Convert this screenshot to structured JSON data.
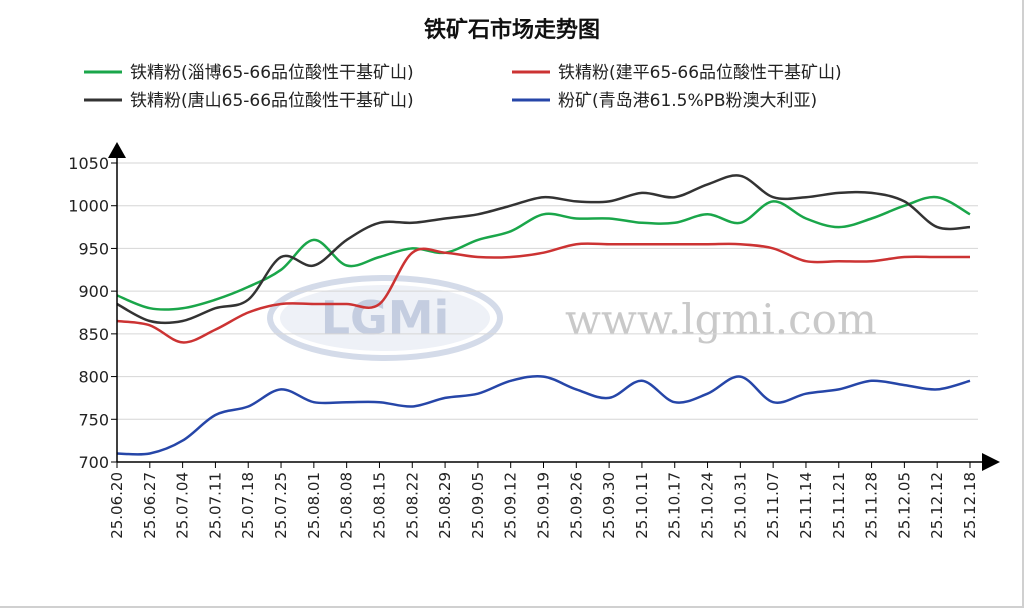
{
  "watermark": {
    "logo": "LGMi",
    "site": "www.lgmi.com"
  },
  "chart_data": {
    "type": "line",
    "title": "铁矿石市场走势图",
    "xlabel": "",
    "ylabel": "",
    "ylim": [
      700,
      1050
    ],
    "yticks": [
      700,
      750,
      800,
      850,
      900,
      950,
      1000,
      1050
    ],
    "grid": true,
    "legend_position": "top",
    "x": [
      "25.06.20",
      "25.06.27",
      "25.07.04",
      "25.07.11",
      "25.07.18",
      "25.07.25",
      "25.08.01",
      "25.08.08",
      "25.08.15",
      "25.08.22",
      "25.08.29",
      "25.09.05",
      "25.09.12",
      "25.09.19",
      "25.09.26",
      "25.09.30",
      "25.10.11",
      "25.10.17",
      "25.10.24",
      "25.10.31",
      "25.11.07",
      "25.11.14",
      "25.11.21",
      "25.11.28",
      "25.12.05",
      "25.12.12",
      "25.12.18"
    ],
    "series": [
      {
        "name": "铁精粉(淄博65-66品位酸性干基矿山)",
        "color": "#1aa64a",
        "values": [
          895,
          880,
          880,
          890,
          905,
          925,
          960,
          930,
          940,
          950,
          945,
          960,
          970,
          990,
          985,
          985,
          980,
          980,
          990,
          980,
          1005,
          985,
          975,
          985,
          1000,
          1010,
          990
        ]
      },
      {
        "name": "铁精粉(建平65-66品位酸性干基矿山)",
        "color": "#cc3333",
        "values": [
          865,
          860,
          840,
          855,
          875,
          885,
          885,
          885,
          885,
          945,
          945,
          940,
          940,
          945,
          955,
          955,
          955,
          955,
          955,
          955,
          950,
          935,
          935,
          935,
          940,
          940,
          940
        ]
      },
      {
        "name": "铁精粉(唐山65-66品位酸性干基矿山)",
        "color": "#333333",
        "values": [
          885,
          865,
          865,
          880,
          890,
          940,
          930,
          960,
          980,
          980,
          985,
          990,
          1000,
          1010,
          1005,
          1005,
          1015,
          1010,
          1025,
          1035,
          1010,
          1010,
          1015,
          1015,
          1005,
          975,
          975
        ]
      },
      {
        "name": "粉矿(青岛港61.5%PB粉澳大利亚)",
        "color": "#2646a8",
        "values": [
          710,
          710,
          725,
          755,
          765,
          785,
          770,
          770,
          770,
          765,
          775,
          780,
          795,
          800,
          785,
          775,
          795,
          770,
          780,
          800,
          770,
          780,
          785,
          795,
          790,
          785,
          795
        ]
      }
    ]
  }
}
